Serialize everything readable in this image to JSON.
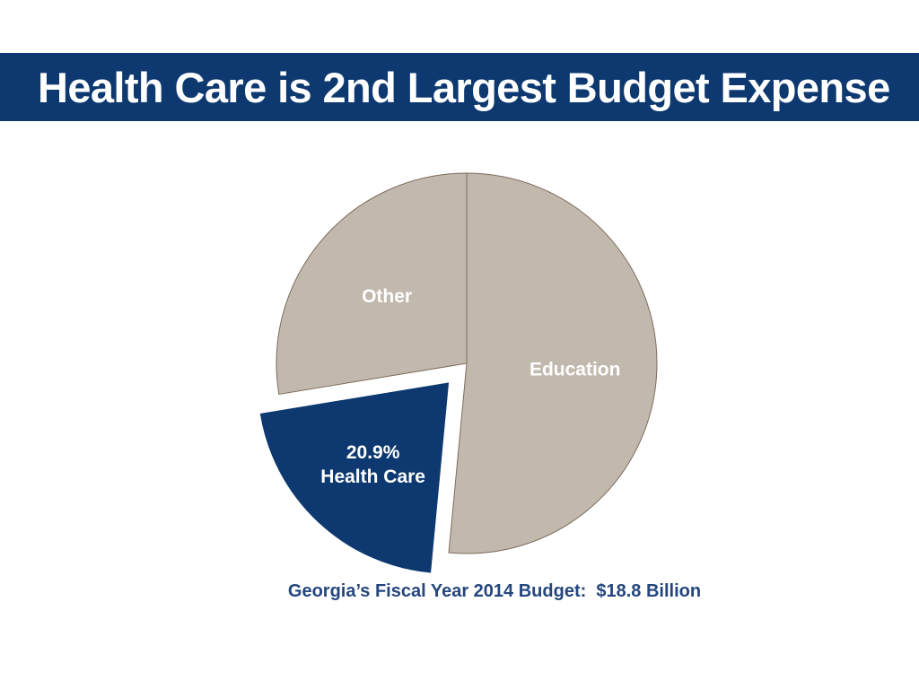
{
  "title": "Health Care is 2nd Largest Budget Expense",
  "caption": "Georgia’s Fiscal Year 2014 Budget:  $18.8 Billion",
  "colors": {
    "title_bar": "#0d3970",
    "title_text": "#ffffff",
    "caption_text": "#24467d",
    "slice_gray": "#c2b9ae",
    "slice_border": "#7d6c5c",
    "slice_blue": "#0d3970",
    "label_text": "#ffffff"
  },
  "chart_data": {
    "type": "pie",
    "title": "Health Care is 2nd Largest Budget Expense",
    "start_angle_deg": 0,
    "direction": "clockwise",
    "slices": [
      {
        "name": "Education",
        "value": 51.5,
        "label_lines": [
          "Education"
        ],
        "exploded": false
      },
      {
        "name": "Health Care",
        "value": 20.9,
        "label_lines": [
          "20.9%",
          "Health Care"
        ],
        "exploded": true
      },
      {
        "name": "Other",
        "value": 27.6,
        "label_lines": [
          "Other"
        ],
        "exploded": false
      }
    ],
    "legend": "none"
  }
}
